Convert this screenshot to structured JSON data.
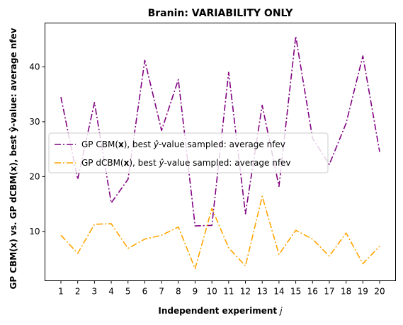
{
  "chart_data": {
    "type": "line",
    "title": "Branin: VARIABILITY ONLY",
    "xlabel": "Independent experiment j",
    "xlabel_main": "Independent experiment ",
    "xlabel_var": "j",
    "ylabel": "GP CBM(x) vs. GP dCBM(x), best ŷ-value: average nfev",
    "x": [
      1,
      2,
      3,
      4,
      5,
      6,
      7,
      8,
      9,
      10,
      11,
      12,
      13,
      14,
      15,
      16,
      17,
      18,
      19,
      20
    ],
    "xlim": [
      0.05,
      20.95
    ],
    "ylim": [
      1.0,
      48.0
    ],
    "y_ticks": [
      10,
      20,
      30,
      40
    ],
    "grid": false,
    "legend_placement": "center-left",
    "series": [
      {
        "name": "GP CBM(x), best ŷ-value sampled: average nfev",
        "name_parts": [
          "GP CBM(",
          "x",
          "), best ",
          "ŷ",
          "-value sampled: average nfev"
        ],
        "color": "#800080",
        "values": [
          34.5,
          19.5,
          33.5,
          15.2,
          19.5,
          41.2,
          28.4,
          37.7,
          11.0,
          11.1,
          39.0,
          13.2,
          33.0,
          18.2,
          45.6,
          27.0,
          22.2,
          29.7,
          42.0,
          24.5
        ]
      },
      {
        "name": "GP dCBM(x), best ŷ-value sampled: average nfev",
        "name_parts": [
          "GP dCBM(",
          "x",
          "), best ",
          "ŷ",
          "-value sampled: average nfev"
        ],
        "color": "#FFA500",
        "values": [
          9.3,
          6.0,
          11.3,
          11.4,
          6.9,
          8.6,
          9.3,
          10.8,
          3.2,
          14.2,
          7.0,
          3.7,
          16.4,
          5.8,
          10.2,
          8.6,
          5.5,
          9.7,
          4.1,
          7.3
        ]
      }
    ]
  }
}
